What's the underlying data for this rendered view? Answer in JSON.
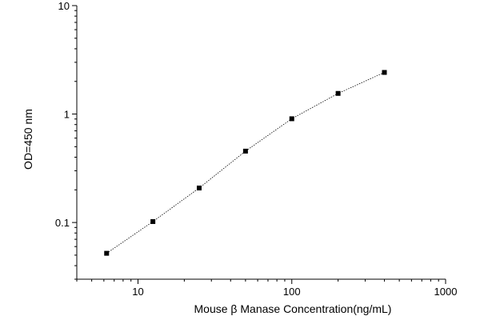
{
  "chart_data": {
    "type": "scatter",
    "title": "",
    "xlabel": "Mouse β  Manase Concentration(ng/mL)",
    "ylabel": "OD=450 nm",
    "x_scale": "log",
    "y_scale": "log",
    "xlim": [
      4,
      1000
    ],
    "ylim": [
      0.03,
      10
    ],
    "x_ticks": [
      {
        "value": 10,
        "label": "10"
      },
      {
        "value": 100,
        "label": "100"
      },
      {
        "value": 1000,
        "label": "1000"
      }
    ],
    "y_ticks": [
      {
        "value": 0.1,
        "label": "0.1"
      },
      {
        "value": 1,
        "label": "1"
      },
      {
        "value": 10,
        "label": "10"
      }
    ],
    "grid": false,
    "legend": "none",
    "marker": "square",
    "line_style": "dotted",
    "colors": {
      "points": "#000000",
      "line": "#000000",
      "axes": "#000000"
    },
    "series": [
      {
        "x": [
          6.25,
          12.5,
          25,
          50,
          100,
          200,
          400
        ],
        "y": [
          0.052,
          0.102,
          0.208,
          0.455,
          0.905,
          1.55,
          2.42
        ]
      }
    ]
  }
}
